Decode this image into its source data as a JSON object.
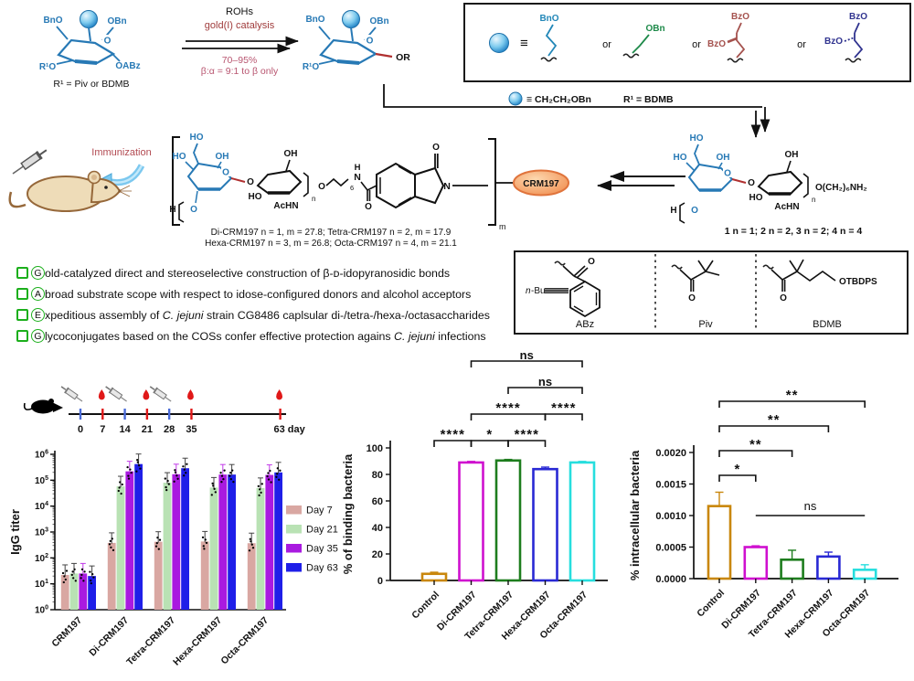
{
  "scheme": {
    "reactant": {
      "bno": "BnO",
      "obn": "OBn",
      "o": "O",
      "r1o": "R¹O",
      "oabz": "OABz",
      "caption": "R¹ = Piv or BDMB"
    },
    "arrow": {
      "line1": "ROHs",
      "line2": "gold(I) catalysis",
      "line3": "70–95%",
      "line4": "β:α = 9:1 to β only"
    },
    "product": {
      "bno": "BnO",
      "obn": "OBn",
      "o": "O",
      "r1o": "R¹O",
      "or": "OR"
    },
    "acceptor_box": {
      "equiv": "≡",
      "or": "or",
      "f1": "BnO",
      "f2": "OBn",
      "f3a": "BzO",
      "f3b": "BzO",
      "f4a": "BzO",
      "f4b": "BzO"
    },
    "connector": {
      "equiv": "≡ CH₂CH₂OBn",
      "r1": "R¹ = BDMB"
    }
  },
  "conjugate": {
    "immunization": "Immunization",
    "crm": "CRM197",
    "m": "m",
    "linker": {
      "o1": "O",
      "six": "6",
      "nh_h": "H",
      "nh_n": "N",
      "o2": "O",
      "o3": "O",
      "n": "N"
    },
    "line1": "Di-CRM197 n = 1, m = 27.8; Tetra-CRM197 n = 2, m = 17.9",
    "line2": "Hexa-CRM197 n = 3, m = 26.8; Octa-CRM197 n = 4, m = 21.1"
  },
  "sugar": {
    "ho_top": "HO",
    "ho_left": "HO",
    "oh_mid": "OH",
    "o_ring": "O",
    "o_bridge": "O",
    "oh_top": "OH",
    "ho_low": "HO",
    "achn": "AcHN",
    "h": "H",
    "n": "n",
    "o_low": "O"
  },
  "oligo": {
    "tail": "O(CH₂)₆NH₂",
    "caption": "1 n = 1;  2 n = 2, 3 n = 2;  4 n = 4"
  },
  "protecting_box": {
    "abz": "ABz",
    "piv": "Piv",
    "bdmb": "BDMB",
    "n_it": "n",
    "bu": "-Bu",
    "otbdps": "OTBDPS",
    "o": "O"
  },
  "highlights": [
    {
      "letter": "G",
      "segments": [
        {
          "t": "old-catalyzed direct and stereoselective construction of β-ᴅ-idopyranosidic bonds"
        }
      ]
    },
    {
      "letter": "A",
      "segments": [
        {
          "t": " broad substrate scope with respect to idose-configured donors and alcohol acceptors"
        }
      ]
    },
    {
      "letter": "E",
      "segments": [
        {
          "t": "xpeditious assembly of "
        },
        {
          "t": "C. jejuni",
          "i": true
        },
        {
          "t": " strain CG8486 caplsular di-/tetra-/hexa-/octasaccharides"
        }
      ]
    },
    {
      "letter": "G",
      "segments": [
        {
          "t": "lycoconjugates based on the COSs confer effective protection agains "
        },
        {
          "t": "C. jejuni",
          "i": true
        },
        {
          "t": " infections"
        }
      ]
    }
  ],
  "timeline": {
    "days": [
      0,
      7,
      14,
      21,
      28,
      35,
      63
    ],
    "syringe_days": [
      0,
      14,
      28
    ],
    "drop_days": [
      7,
      21,
      35,
      63
    ],
    "last_label": "63 day",
    "tick_blue": "#4a6bd8",
    "tick_red": "#e01818"
  },
  "chart_data": [
    {
      "type": "bar",
      "yscale": "log",
      "ylabel": "IgG titer",
      "ylim": [
        1,
        1000000
      ],
      "categories": [
        "CRM197",
        "Di-CRM197",
        "Tetra-CRM197",
        "Hexa-CRM197",
        "Octa-CRM197"
      ],
      "series": [
        {
          "name": "Day 7",
          "color": "#d9a7a2",
          "values": [
            22,
            380,
            420,
            430,
            370
          ]
        },
        {
          "name": "Day 21",
          "color": "#b9e2b4",
          "values": [
            25,
            58000,
            80000,
            52000,
            50000
          ]
        },
        {
          "name": "Day 35",
          "color": "#a91ae0",
          "values": [
            25,
            220000,
            170000,
            165000,
            160000
          ]
        },
        {
          "name": "Day 63",
          "color": "#1f1fe8",
          "values": [
            20,
            420000,
            290000,
            165000,
            200000
          ]
        }
      ],
      "legend_position": "right"
    },
    {
      "type": "bar",
      "ylabel": "% of binding bacteria",
      "ylim": [
        0,
        100
      ],
      "yticks": [
        0,
        20,
        40,
        60,
        80,
        100
      ],
      "categories": [
        "Control",
        "Di-CRM197",
        "Tetra-CRM197",
        "Hexa-CRM197",
        "Octa-CRM197"
      ],
      "values": [
        5,
        89,
        90.5,
        84,
        89
      ],
      "errors": [
        1.2,
        0.8,
        0.8,
        1.5,
        0.8
      ],
      "colors": [
        "#c9870c",
        "#cf10cf",
        "#1e7d1e",
        "#2929d4",
        "#26dede"
      ],
      "significance": [
        {
          "a": 0,
          "b": 1,
          "label": "****",
          "row": 0
        },
        {
          "a": 1,
          "b": 2,
          "label": "*",
          "row": 0
        },
        {
          "a": 2,
          "b": 3,
          "label": "****",
          "row": 0
        },
        {
          "a": 1,
          "b": 3,
          "label": "****",
          "row": 1
        },
        {
          "a": 3,
          "b": 4,
          "label": "****",
          "row": 1
        },
        {
          "a": 2,
          "b": 4,
          "label": "ns",
          "row": 2
        },
        {
          "a": 1,
          "b": 4,
          "label": "ns",
          "row": 3
        }
      ]
    },
    {
      "type": "bar",
      "ylabel": "% intracellular bacteria",
      "ylim": [
        0,
        0.002
      ],
      "yticks": [
        0,
        0.0005,
        0.001,
        0.0015,
        0.002
      ],
      "ytick_decimals": 4,
      "categories": [
        "Control",
        "Di-CRM197",
        "Tetra-CRM197",
        "Hexa-CRM197",
        "Octa-CRM197"
      ],
      "values": [
        0.00115,
        0.0005,
        0.0003,
        0.00035,
        0.00014
      ],
      "errors": [
        0.00022,
        2e-05,
        0.00015,
        7e-05,
        8e-05
      ],
      "colors": [
        "#c9870c",
        "#cf10cf",
        "#1e7d1e",
        "#2929d4",
        "#26dede"
      ],
      "significance": [
        {
          "a": 0,
          "b": 1,
          "label": "*",
          "row": 0
        },
        {
          "a": 0,
          "b": 2,
          "label": "**",
          "row": 1
        },
        {
          "a": 0,
          "b": 3,
          "label": "**",
          "row": 2
        },
        {
          "a": 0,
          "b": 4,
          "label": "**",
          "row": 3
        },
        {
          "a": 1,
          "b": 4,
          "label": "ns",
          "style": "line",
          "value": 0.001
        }
      ]
    }
  ]
}
